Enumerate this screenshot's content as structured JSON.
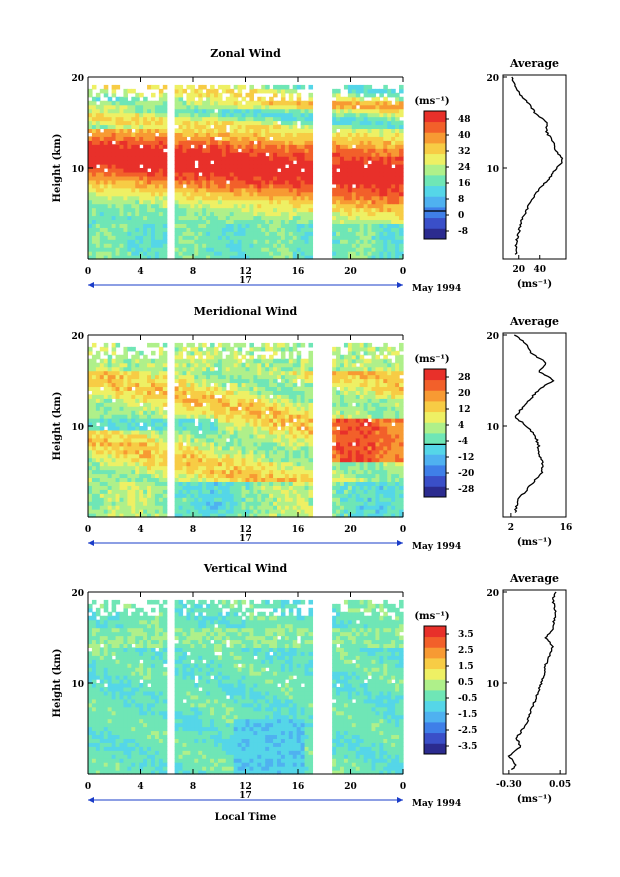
{
  "chart_data": [
    {
      "type": "heatmap",
      "title": "Zonal Wind",
      "ylabel": "Height (km)",
      "x_ticks": [
        "0",
        "4",
        "8",
        "12",
        "16",
        "20",
        "0"
      ],
      "y_ticks": [
        "10",
        "20"
      ],
      "ylim": [
        0,
        20
      ],
      "xlim_hours": [
        0,
        24
      ],
      "day_label": "17",
      "date_label": "May 1994",
      "data_gaps_hours": [
        [
          6.0,
          6.6
        ],
        [
          17.2,
          18.6
        ]
      ],
      "colorbar": {
        "unit": "(ms⁻¹)",
        "ticks": [
          "48",
          "40",
          "32",
          "24",
          "16",
          "8",
          "0",
          "-8"
        ],
        "marked_value": "0"
      },
      "field_summary": "Strong eastward jet (>40 ms⁻¹) between about 8 and 12 km, descending and strengthening through the day; weaker winds (8-24 ms⁻¹) below 6 km and above 14 km.",
      "profile": {
        "title": "Average",
        "x_ticks": [
          "20",
          "40"
        ],
        "xlabel": "(ms⁻¹)",
        "y_ticks": [
          "10",
          "20"
        ],
        "xlim": [
          5,
          65
        ],
        "heights_km": [
          0.5,
          2,
          3,
          4,
          5,
          6,
          7,
          8,
          9,
          10,
          10.5,
          11,
          11.5,
          12,
          13,
          14,
          15,
          16,
          17,
          18,
          19,
          20
        ],
        "values": [
          17,
          18,
          20,
          22,
          26,
          30,
          35,
          42,
          50,
          56,
          60,
          61,
          58,
          55,
          52,
          46,
          47,
          36,
          30,
          22,
          16,
          13
        ]
      }
    },
    {
      "type": "heatmap",
      "title": "Meridional Wind",
      "ylabel": "Height (km)",
      "x_ticks": [
        "0",
        "4",
        "8",
        "12",
        "16",
        "20",
        "0"
      ],
      "y_ticks": [
        "10",
        "20"
      ],
      "ylim": [
        0,
        20
      ],
      "xlim_hours": [
        0,
        24
      ],
      "day_label": "17",
      "date_label": "May 1994",
      "data_gaps_hours": [
        [
          6.0,
          6.6
        ],
        [
          17.2,
          18.6
        ]
      ],
      "colorbar": {
        "unit": "(ms⁻¹)",
        "ticks": [
          "28",
          "20",
          "12",
          "4",
          "-4",
          "-12",
          "-20",
          "-28"
        ],
        "marked_value": "0"
      },
      "field_summary": "Northward winds 4-20 ms⁻¹ over most of the column, strongest (>20 ms⁻¹) near 8-11 km late in the day; weak southward winds near 10-11 km early in the day.",
      "profile": {
        "title": "Average",
        "x_ticks": [
          "2",
          "16"
        ],
        "xlabel": "(ms⁻¹)",
        "y_ticks": [
          "10",
          "20"
        ],
        "xlim": [
          0,
          16
        ],
        "heights_km": [
          0.5,
          2,
          3,
          4,
          5,
          6,
          7,
          8,
          9,
          10,
          11,
          12,
          13,
          14,
          15,
          16,
          17,
          18,
          19,
          20
        ],
        "values": [
          3,
          4,
          6,
          8,
          10,
          10,
          9,
          9,
          8,
          6,
          3,
          5,
          7,
          9,
          13,
          9,
          11,
          7,
          6,
          3
        ]
      }
    },
    {
      "type": "heatmap",
      "title": "Vertical Wind",
      "ylabel": "Height (km)",
      "xlabel": "Local Time",
      "x_ticks": [
        "0",
        "4",
        "8",
        "12",
        "16",
        "20",
        "0"
      ],
      "y_ticks": [
        "10",
        "20"
      ],
      "ylim": [
        0,
        20
      ],
      "xlim_hours": [
        0,
        24
      ],
      "day_label": "17",
      "date_label": "May 1994",
      "data_gaps_hours": [
        [
          6.0,
          6.6
        ],
        [
          17.2,
          18.6
        ]
      ],
      "colorbar": {
        "unit": "(ms⁻¹)",
        "ticks": [
          "3.5",
          "2.5",
          "1.5",
          "0.5",
          "-0.5",
          "-1.5",
          "-2.5",
          "-3.5"
        ]
      },
      "field_summary": "Mostly weak vertical motion between -0.5 and 0.5 ms⁻¹; slight downward motion (-1.5 ms⁻¹) below 4 km around 12-16 h.",
      "profile": {
        "title": "Average",
        "x_ticks": [
          "-0.30",
          "0.05"
        ],
        "xlabel": "(ms⁻¹)",
        "y_ticks": [
          "10",
          "20"
        ],
        "xlim": [
          -0.34,
          0.09
        ],
        "heights_km": [
          0.5,
          1,
          2,
          3,
          4,
          5,
          6,
          7,
          8,
          9,
          10,
          11,
          12,
          13,
          14,
          15,
          16,
          17,
          18,
          19,
          20
        ],
        "values": [
          -0.28,
          -0.25,
          -0.3,
          -0.22,
          -0.25,
          -0.2,
          -0.17,
          -0.15,
          -0.12,
          -0.1,
          -0.08,
          -0.06,
          -0.05,
          -0.02,
          0.0,
          -0.05,
          0.0,
          0.01,
          0.02,
          0.0,
          0.02
        ]
      }
    }
  ]
}
